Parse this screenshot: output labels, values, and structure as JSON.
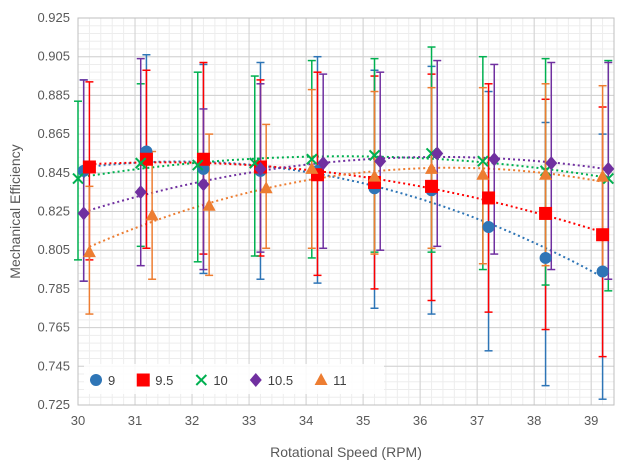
{
  "chart_data": {
    "type": "scatter",
    "title": "",
    "xlabel": "Rotational Speed (RPM)",
    "ylabel": "Mechanical Efficiency",
    "xlim": [
      30,
      39.4
    ],
    "ylim": [
      0.725,
      0.925
    ],
    "xticks": [
      30,
      31,
      32,
      33,
      34,
      35,
      36,
      37,
      38,
      39
    ],
    "yticks": [
      0.725,
      0.745,
      0.765,
      0.785,
      0.805,
      0.825,
      0.845,
      0.865,
      0.885,
      0.905,
      0.925
    ],
    "grid": true,
    "minor_grid": true,
    "legend_position": "bottom-left",
    "trendlines": "dotted polynomial",
    "series": [
      {
        "name": "9",
        "marker": "circle",
        "color": "#2E75B6",
        "points": [
          {
            "x": 30.1,
            "y": 0.846,
            "lo": 0.789,
            "hi": 0.893
          },
          {
            "x": 31.2,
            "y": 0.856,
            "lo": 0.806,
            "hi": 0.906
          },
          {
            "x": 32.2,
            "y": 0.847,
            "lo": 0.793,
            "hi": 0.901
          },
          {
            "x": 33.2,
            "y": 0.846,
            "lo": 0.79,
            "hi": 0.902
          },
          {
            "x": 34.2,
            "y": 0.846,
            "lo": 0.788,
            "hi": 0.905
          },
          {
            "x": 35.2,
            "y": 0.837,
            "lo": 0.775,
            "hi": 0.898
          },
          {
            "x": 36.2,
            "y": 0.836,
            "lo": 0.772,
            "hi": 0.9
          },
          {
            "x": 37.2,
            "y": 0.817,
            "lo": 0.753,
            "hi": 0.887
          },
          {
            "x": 38.2,
            "y": 0.801,
            "lo": 0.735,
            "hi": 0.871
          },
          {
            "x": 39.2,
            "y": 0.794,
            "lo": 0.728,
            "hi": 0.865
          }
        ]
      },
      {
        "name": "9.5",
        "marker": "square",
        "color": "#FF0000",
        "points": [
          {
            "x": 30.2,
            "y": 0.848,
            "lo": 0.8,
            "hi": 0.892
          },
          {
            "x": 31.2,
            "y": 0.852,
            "lo": 0.806,
            "hi": 0.898
          },
          {
            "x": 32.2,
            "y": 0.852,
            "lo": 0.803,
            "hi": 0.902
          },
          {
            "x": 33.2,
            "y": 0.848,
            "lo": 0.802,
            "hi": 0.893
          },
          {
            "x": 34.2,
            "y": 0.844,
            "lo": 0.792,
            "hi": 0.897
          },
          {
            "x": 35.2,
            "y": 0.84,
            "lo": 0.785,
            "hi": 0.895
          },
          {
            "x": 36.2,
            "y": 0.838,
            "lo": 0.779,
            "hi": 0.896
          },
          {
            "x": 37.2,
            "y": 0.832,
            "lo": 0.773,
            "hi": 0.891
          },
          {
            "x": 38.2,
            "y": 0.824,
            "lo": 0.764,
            "hi": 0.883
          },
          {
            "x": 39.2,
            "y": 0.813,
            "lo": 0.75,
            "hi": 0.879
          }
        ]
      },
      {
        "name": "10",
        "marker": "x",
        "color": "#00B050",
        "points": [
          {
            "x": 30.0,
            "y": 0.842,
            "lo": 0.8,
            "hi": 0.882
          },
          {
            "x": 31.1,
            "y": 0.85,
            "lo": 0.807,
            "hi": 0.891
          },
          {
            "x": 32.1,
            "y": 0.849,
            "lo": 0.799,
            "hi": 0.897
          },
          {
            "x": 33.1,
            "y": 0.85,
            "lo": 0.802,
            "hi": 0.895
          },
          {
            "x": 34.1,
            "y": 0.852,
            "lo": 0.801,
            "hi": 0.903
          },
          {
            "x": 35.2,
            "y": 0.854,
            "lo": 0.804,
            "hi": 0.904
          },
          {
            "x": 36.2,
            "y": 0.855,
            "lo": 0.804,
            "hi": 0.91
          },
          {
            "x": 37.1,
            "y": 0.851,
            "lo": 0.795,
            "hi": 0.905
          },
          {
            "x": 38.2,
            "y": 0.846,
            "lo": 0.787,
            "hi": 0.904
          },
          {
            "x": 39.3,
            "y": 0.842,
            "lo": 0.784,
            "hi": 0.903
          }
        ]
      },
      {
        "name": "10.5",
        "marker": "diamond",
        "color": "#7030A0",
        "points": [
          {
            "x": 30.1,
            "y": 0.824,
            "lo": 0.789,
            "hi": 0.893
          },
          {
            "x": 31.1,
            "y": 0.835,
            "lo": 0.797,
            "hi": 0.904
          },
          {
            "x": 32.2,
            "y": 0.839,
            "lo": 0.795,
            "hi": 0.878
          },
          {
            "x": 33.2,
            "y": 0.847,
            "lo": 0.804,
            "hi": 0.891
          },
          {
            "x": 34.3,
            "y": 0.85,
            "lo": 0.806,
            "hi": 0.896
          },
          {
            "x": 35.3,
            "y": 0.851,
            "lo": 0.805,
            "hi": 0.897
          },
          {
            "x": 36.3,
            "y": 0.855,
            "lo": 0.807,
            "hi": 0.903
          },
          {
            "x": 37.3,
            "y": 0.852,
            "lo": 0.803,
            "hi": 0.901
          },
          {
            "x": 38.3,
            "y": 0.85,
            "lo": 0.795,
            "hi": 0.902
          },
          {
            "x": 39.3,
            "y": 0.847,
            "lo": 0.79,
            "hi": 0.902
          }
        ]
      },
      {
        "name": "11",
        "marker": "triangle",
        "color": "#ED7D31",
        "points": [
          {
            "x": 30.2,
            "y": 0.804,
            "lo": 0.772,
            "hi": 0.838
          },
          {
            "x": 31.3,
            "y": 0.823,
            "lo": 0.79,
            "hi": 0.856
          },
          {
            "x": 32.3,
            "y": 0.828,
            "lo": 0.792,
            "hi": 0.865
          },
          {
            "x": 33.3,
            "y": 0.837,
            "lo": 0.806,
            "hi": 0.87
          },
          {
            "x": 34.1,
            "y": 0.847,
            "lo": 0.806,
            "hi": 0.888
          },
          {
            "x": 35.2,
            "y": 0.843,
            "lo": 0.803,
            "hi": 0.887
          },
          {
            "x": 36.2,
            "y": 0.847,
            "lo": 0.806,
            "hi": 0.889
          },
          {
            "x": 37.1,
            "y": 0.844,
            "lo": 0.798,
            "hi": 0.889
          },
          {
            "x": 38.2,
            "y": 0.844,
            "lo": 0.797,
            "hi": 0.891
          },
          {
            "x": 39.2,
            "y": 0.843,
            "lo": 0.796,
            "hi": 0.89
          }
        ]
      }
    ]
  }
}
